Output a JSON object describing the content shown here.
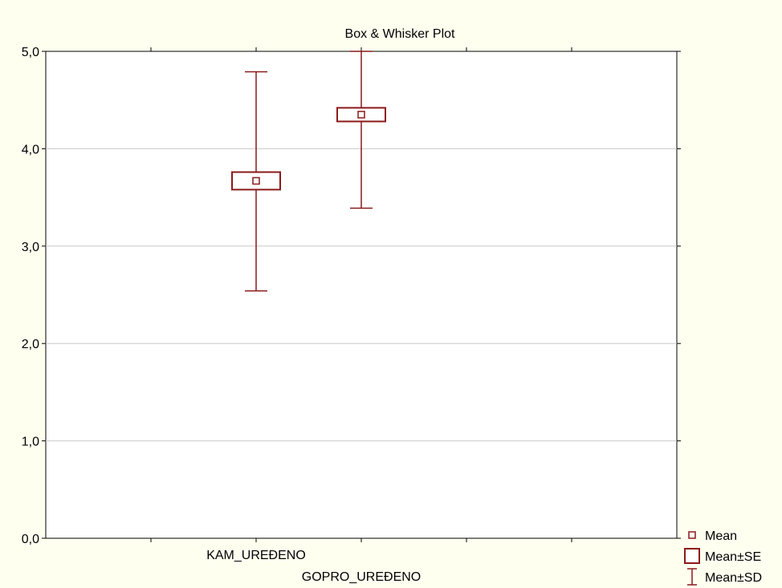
{
  "chart_data": {
    "type": "box",
    "title": "Box & Whisker Plot",
    "xlabel": "",
    "ylabel": "",
    "ylim": [
      0,
      5
    ],
    "y_ticks": [
      0,
      1,
      2,
      3,
      4,
      5
    ],
    "y_tick_labels": [
      "0,0",
      "1,0",
      "2,0",
      "3,0",
      "4,0",
      "5,0"
    ],
    "grid": true,
    "legend_position": "bottom-right",
    "categories": [
      "KAM_UREĐENO",
      "GOPRO_UREĐENO"
    ],
    "series": [
      {
        "category": "KAM_UREĐENO",
        "mean": 3.67,
        "se_low": 3.58,
        "se_high": 3.76,
        "sd_low": 2.54,
        "sd_high": 4.79
      },
      {
        "category": "GOPRO_UREĐENO",
        "mean": 4.35,
        "se_low": 4.28,
        "se_high": 4.42,
        "sd_low": 3.39,
        "sd_high": 5.0
      }
    ],
    "legend": [
      {
        "label": "Mean",
        "symbol": "small-square"
      },
      {
        "label": "Mean±SE",
        "symbol": "box"
      },
      {
        "label": "Mean±SD",
        "symbol": "whisker"
      }
    ],
    "colors": {
      "series": "#8b1a1a",
      "grid": "#c8c8c8",
      "plot_bg": "#ffffff",
      "page_bg": "#fffff0"
    }
  }
}
